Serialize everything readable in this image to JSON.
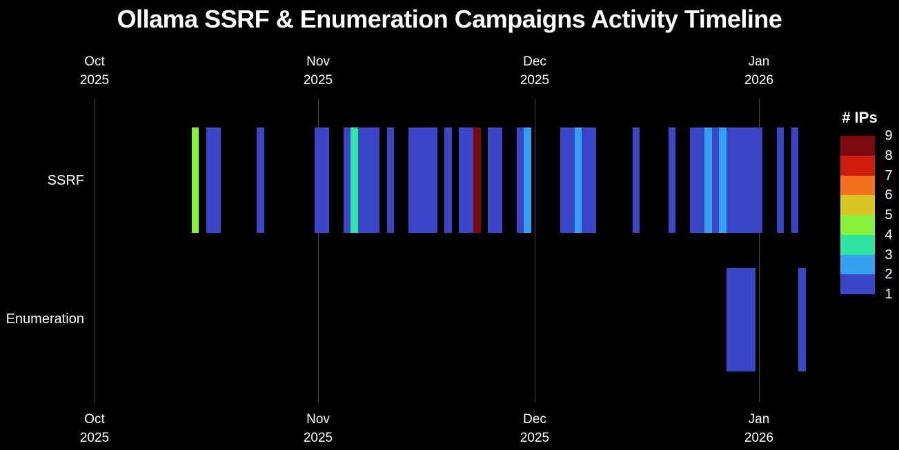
{
  "chart_data": {
    "type": "heatmap",
    "title": "Ollama SSRF & Enumeration Campaigns Activity Timeline",
    "rows": [
      "SSRF",
      "Enumeration"
    ],
    "x_ticks": [
      {
        "month": "Oct",
        "year": "2025",
        "day_offset": 0
      },
      {
        "month": "Nov",
        "year": "2025",
        "day_offset": 31
      },
      {
        "month": "Dec",
        "year": "2025",
        "day_offset": 61
      },
      {
        "month": "Jan",
        "year": "2026",
        "day_offset": 92
      }
    ],
    "x_axis_note": "day_offset 0 = 2025-10-01; axis labeled on top and bottom",
    "background_color": "#000000",
    "grid_color": "#4f4f4f",
    "legend": {
      "title": "# IPs",
      "tick_labels_top_to_bottom": [
        "9",
        "8",
        "7",
        "6",
        "5",
        "4",
        "3",
        "2",
        "1"
      ],
      "colors_low_to_high": [
        "#3a46c6",
        "#35a0f0",
        "#2ee6a2",
        "#86f23a",
        "#d9c525",
        "#f3711e",
        "#cc1d0f",
        "#7a0a10"
      ]
    },
    "bars": [
      {
        "row": "SSRF",
        "day_offset": 14,
        "days": 1,
        "ips": 4,
        "date": "2025-10-15"
      },
      {
        "row": "SSRF",
        "day_offset": 16,
        "days": 2,
        "ips": 1,
        "date": "2025-10-17 to 2025-10-18"
      },
      {
        "row": "SSRF",
        "day_offset": 23,
        "days": 1,
        "ips": 1,
        "date": "2025-10-24"
      },
      {
        "row": "SSRF",
        "day_offset": 31,
        "days": 2,
        "ips": 1,
        "date": "2025-11-01 to 2025-11-02"
      },
      {
        "row": "SSRF",
        "day_offset": 35,
        "days": 1,
        "ips": 1,
        "date": "2025-11-05"
      },
      {
        "row": "SSRF",
        "day_offset": 36,
        "days": 1,
        "ips": 3,
        "date": "2025-11-06"
      },
      {
        "row": "SSRF",
        "day_offset": 37,
        "days": 3,
        "ips": 1,
        "date": "2025-11-07 to 2025-11-09"
      },
      {
        "row": "SSRF",
        "day_offset": 41,
        "days": 1,
        "ips": 1,
        "date": "2025-11-11"
      },
      {
        "row": "SSRF",
        "day_offset": 44,
        "days": 4,
        "ips": 1,
        "date": "2025-11-14 to 2025-11-17"
      },
      {
        "row": "SSRF",
        "day_offset": 49,
        "days": 1,
        "ips": 1,
        "date": "2025-11-19"
      },
      {
        "row": "SSRF",
        "day_offset": 51,
        "days": 2,
        "ips": 1,
        "date": "2025-11-21 to 2025-11-22"
      },
      {
        "row": "SSRF",
        "day_offset": 53,
        "days": 1,
        "ips": 8,
        "date": "2025-11-23"
      },
      {
        "row": "SSRF",
        "day_offset": 55,
        "days": 2,
        "ips": 1,
        "date": "2025-11-25 to 2025-11-26"
      },
      {
        "row": "SSRF",
        "day_offset": 59,
        "days": 1,
        "ips": 1,
        "date": "2025-11-29"
      },
      {
        "row": "SSRF",
        "day_offset": 60,
        "days": 1,
        "ips": 2,
        "date": "2025-11-30"
      },
      {
        "row": "SSRF",
        "day_offset": 65,
        "days": 2,
        "ips": 1,
        "date": "2025-12-05 to 2025-12-06"
      },
      {
        "row": "SSRF",
        "day_offset": 67,
        "days": 1,
        "ips": 2,
        "date": "2025-12-07"
      },
      {
        "row": "SSRF",
        "day_offset": 68,
        "days": 2,
        "ips": 1,
        "date": "2025-12-08 to 2025-12-09"
      },
      {
        "row": "SSRF",
        "day_offset": 75,
        "days": 1,
        "ips": 1,
        "date": "2025-12-15"
      },
      {
        "row": "SSRF",
        "day_offset": 80,
        "days": 1,
        "ips": 1,
        "date": "2025-12-20"
      },
      {
        "row": "SSRF",
        "day_offset": 83,
        "days": 2,
        "ips": 1,
        "date": "2025-12-23 to 2025-12-24"
      },
      {
        "row": "SSRF",
        "day_offset": 85,
        "days": 1,
        "ips": 2,
        "date": "2025-12-25"
      },
      {
        "row": "SSRF",
        "day_offset": 86,
        "days": 1,
        "ips": 1,
        "date": "2025-12-26"
      },
      {
        "row": "SSRF",
        "day_offset": 87,
        "days": 1,
        "ips": 2,
        "date": "2025-12-27"
      },
      {
        "row": "SSRF",
        "day_offset": 88,
        "days": 5,
        "ips": 1,
        "date": "2025-12-28 to 2026-01-01"
      },
      {
        "row": "SSRF",
        "day_offset": 95,
        "days": 1,
        "ips": 1,
        "date": "2026-01-04"
      },
      {
        "row": "SSRF",
        "day_offset": 97,
        "days": 1,
        "ips": 1,
        "date": "2026-01-06"
      },
      {
        "row": "Enumeration",
        "day_offset": 88,
        "days": 4,
        "ips": 1,
        "date": "2025-12-28 to 2025-12-31"
      },
      {
        "row": "Enumeration",
        "day_offset": 98,
        "days": 1,
        "ips": 1,
        "date": "2026-01-07"
      }
    ]
  }
}
